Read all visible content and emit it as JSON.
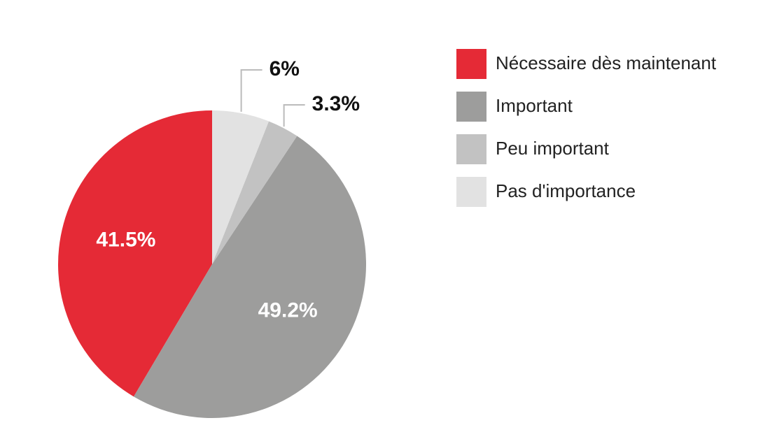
{
  "chart_data": {
    "type": "pie",
    "categories": [
      "Nécessaire dès maintenant",
      "Important",
      "Peu important",
      "Pas d'importance"
    ],
    "values": [
      41.5,
      49.2,
      3.3,
      6
    ],
    "value_labels": [
      "41.5%",
      "49.2%",
      "3.3%",
      "6%"
    ],
    "colors": [
      "#e52a36",
      "#9d9d9c",
      "#c2c2c2",
      "#e2e2e2"
    ],
    "legend": "right"
  }
}
